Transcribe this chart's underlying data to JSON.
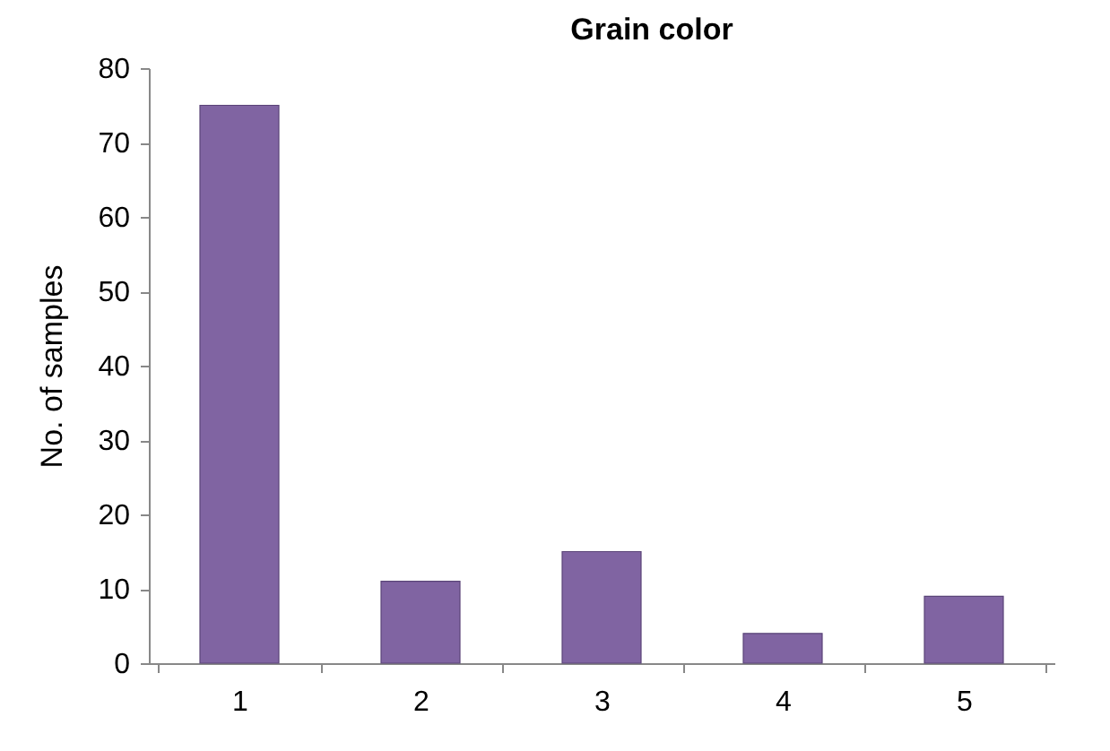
{
  "chart_data": {
    "type": "bar",
    "title": "Grain color",
    "ylabel": "No. of samples",
    "categories": [
      "1",
      "2",
      "3",
      "4",
      "5"
    ],
    "values": [
      75,
      11,
      15,
      4,
      9
    ],
    "color": "#8064a2",
    "ylim": [
      0,
      80
    ],
    "yticks": [
      0,
      10,
      20,
      30,
      40,
      50,
      60,
      70,
      80
    ],
    "grid": false
  }
}
